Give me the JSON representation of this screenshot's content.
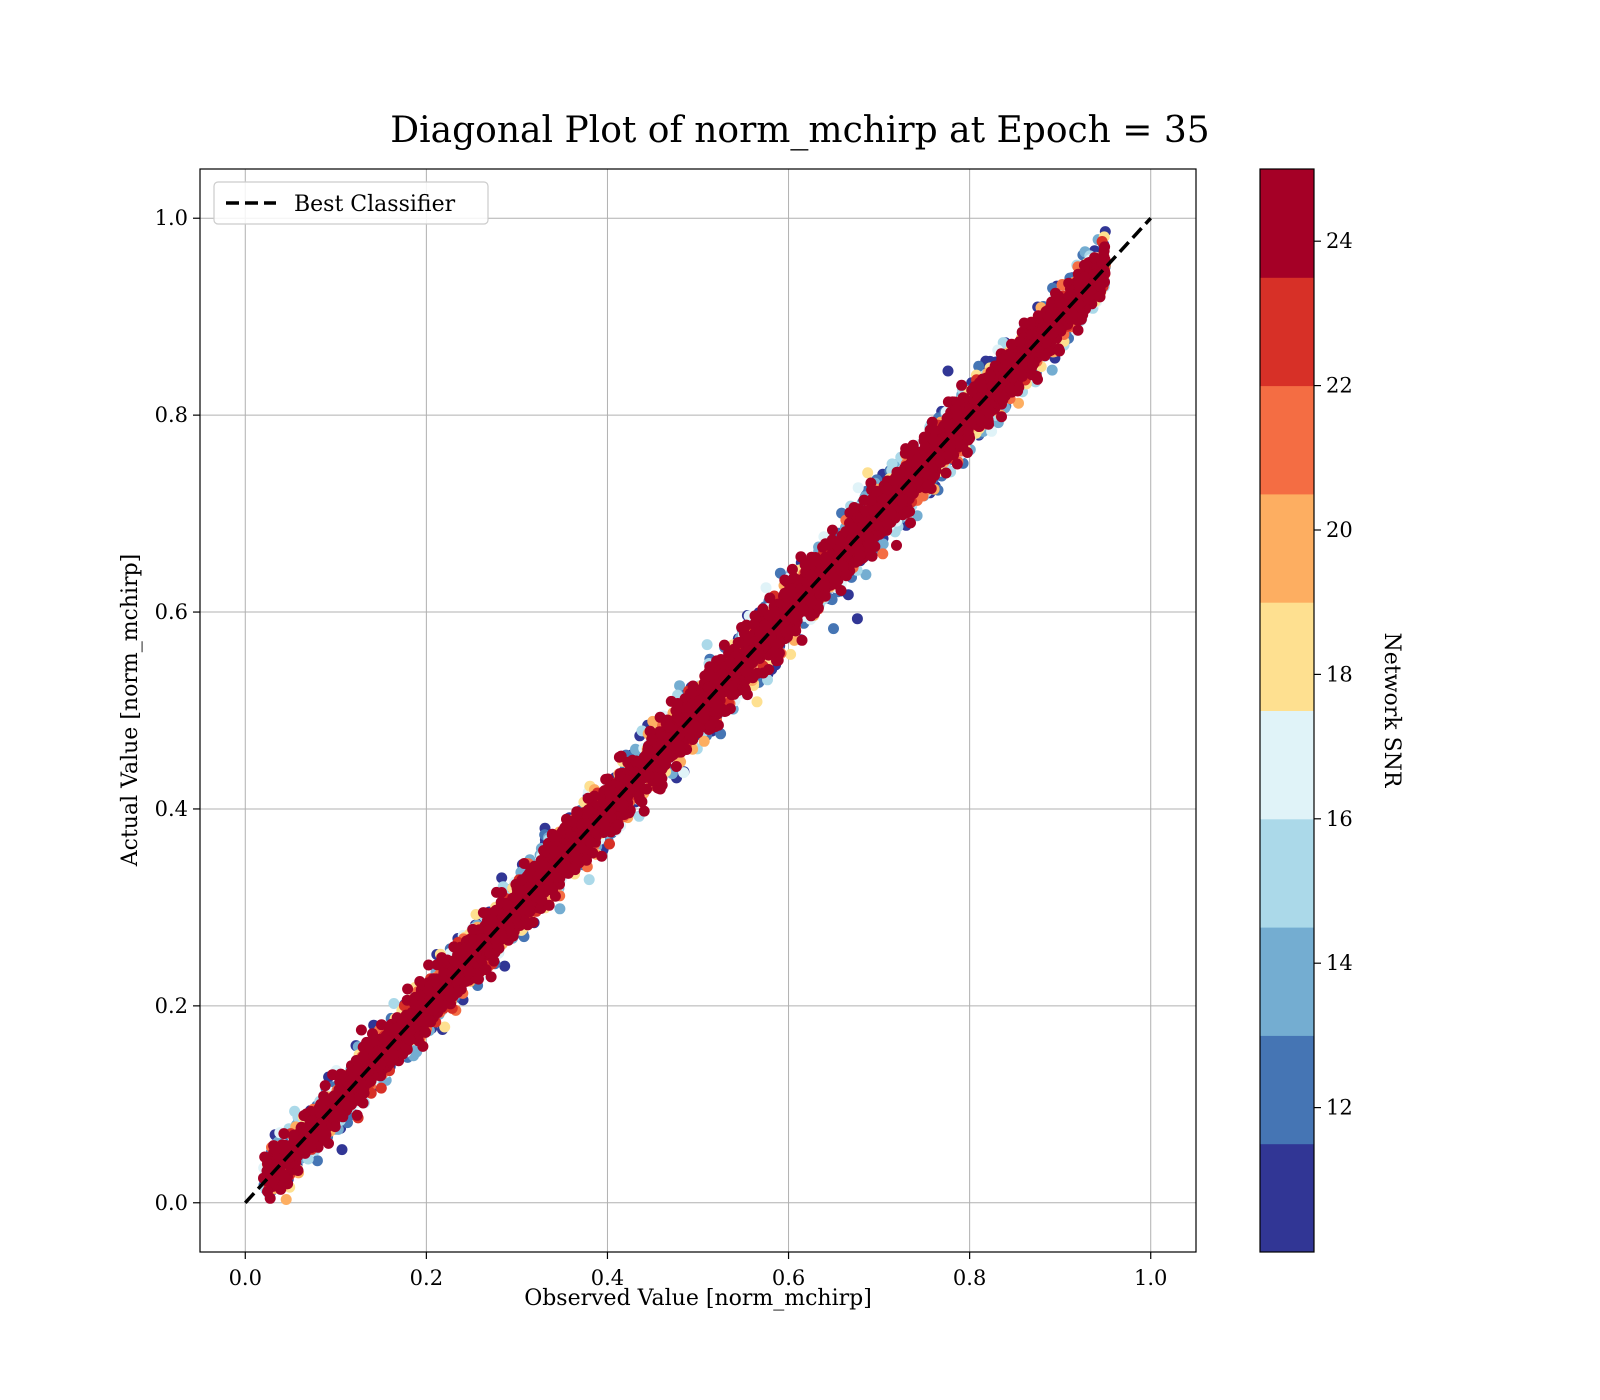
{
  "chart_data": {
    "type": "scatter",
    "title": "Diagonal Plot of norm_mchirp at Epoch = 35",
    "xlabel": "Observed Value [norm_mchirp]",
    "ylabel": "Actual Value [norm_mchirp]",
    "xlim": [
      -0.05,
      1.05
    ],
    "ylim": [
      -0.05,
      1.05
    ],
    "xticks": [
      "0.0",
      "0.2",
      "0.4",
      "0.6",
      "0.8",
      "1.0"
    ],
    "yticks": [
      "0.0",
      "0.2",
      "0.4",
      "0.6",
      "0.8",
      "1.0"
    ],
    "grid": true,
    "legend": {
      "placement": "upper-left",
      "entries": [
        {
          "label": "Best Classifier",
          "style": "dashed",
          "color": "#000000"
        }
      ]
    },
    "reference_line": {
      "x": [
        0.0,
        1.0
      ],
      "y": [
        0.0,
        1.0
      ]
    },
    "colorbar": {
      "label": "Network SNR",
      "range": [
        10,
        25
      ],
      "ticks": [
        "12",
        "14",
        "16",
        "18",
        "20",
        "22",
        "24"
      ],
      "bands": 10,
      "colors": [
        "#313695",
        "#4575b4",
        "#74add1",
        "#abd9e9",
        "#e0f3f8",
        "#fee090",
        "#fdae61",
        "#f46d43",
        "#d73027",
        "#a50026"
      ]
    },
    "points": {
      "count": 9000,
      "x_range": [
        0.02,
        0.95
      ],
      "y_range": [
        0.0,
        1.0
      ],
      "note_relation": "y ≈ x",
      "color_variable": "Network SNR"
    }
  }
}
